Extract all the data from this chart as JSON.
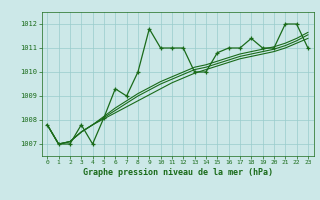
{
  "title": "Graphe pression niveau de la mer (hPa)",
  "bg_color": "#cce8e8",
  "line_color": "#1a6b1a",
  "grid_color": "#99cccc",
  "xlim": [
    -0.5,
    23.5
  ],
  "ylim": [
    1006.5,
    1012.5
  ],
  "yticks": [
    1007,
    1008,
    1009,
    1010,
    1011,
    1012
  ],
  "xticks": [
    0,
    1,
    2,
    3,
    4,
    5,
    6,
    7,
    8,
    9,
    10,
    11,
    12,
    13,
    14,
    15,
    16,
    17,
    18,
    19,
    20,
    21,
    22,
    23
  ],
  "series": [
    [
      1007.8,
      1007.0,
      1007.0,
      1007.8,
      1007.0,
      1008.1,
      1009.3,
      1009.0,
      1010.0,
      1011.8,
      1011.0,
      1011.0,
      1011.0,
      1010.0,
      1010.0,
      1010.8,
      1011.0,
      1011.0,
      1011.4,
      1011.0,
      1011.0,
      1012.0,
      1012.0,
      1011.0
    ],
    [
      1007.8,
      1007.0,
      1007.1,
      1007.5,
      1007.8,
      1008.05,
      1008.3,
      1008.55,
      1008.8,
      1009.05,
      1009.3,
      1009.55,
      1009.75,
      1009.95,
      1010.1,
      1010.25,
      1010.4,
      1010.55,
      1010.65,
      1010.75,
      1010.85,
      1011.0,
      1011.2,
      1011.4
    ],
    [
      1007.8,
      1007.0,
      1007.1,
      1007.5,
      1007.8,
      1008.1,
      1008.4,
      1008.7,
      1009.0,
      1009.25,
      1009.5,
      1009.7,
      1009.9,
      1010.1,
      1010.2,
      1010.35,
      1010.5,
      1010.65,
      1010.75,
      1010.85,
      1010.95,
      1011.1,
      1011.3,
      1011.55
    ],
    [
      1007.8,
      1007.0,
      1007.1,
      1007.5,
      1007.8,
      1008.15,
      1008.5,
      1008.8,
      1009.1,
      1009.35,
      1009.6,
      1009.8,
      1010.0,
      1010.2,
      1010.3,
      1010.45,
      1010.6,
      1010.75,
      1010.85,
      1010.95,
      1011.05,
      1011.2,
      1011.4,
      1011.65
    ]
  ]
}
